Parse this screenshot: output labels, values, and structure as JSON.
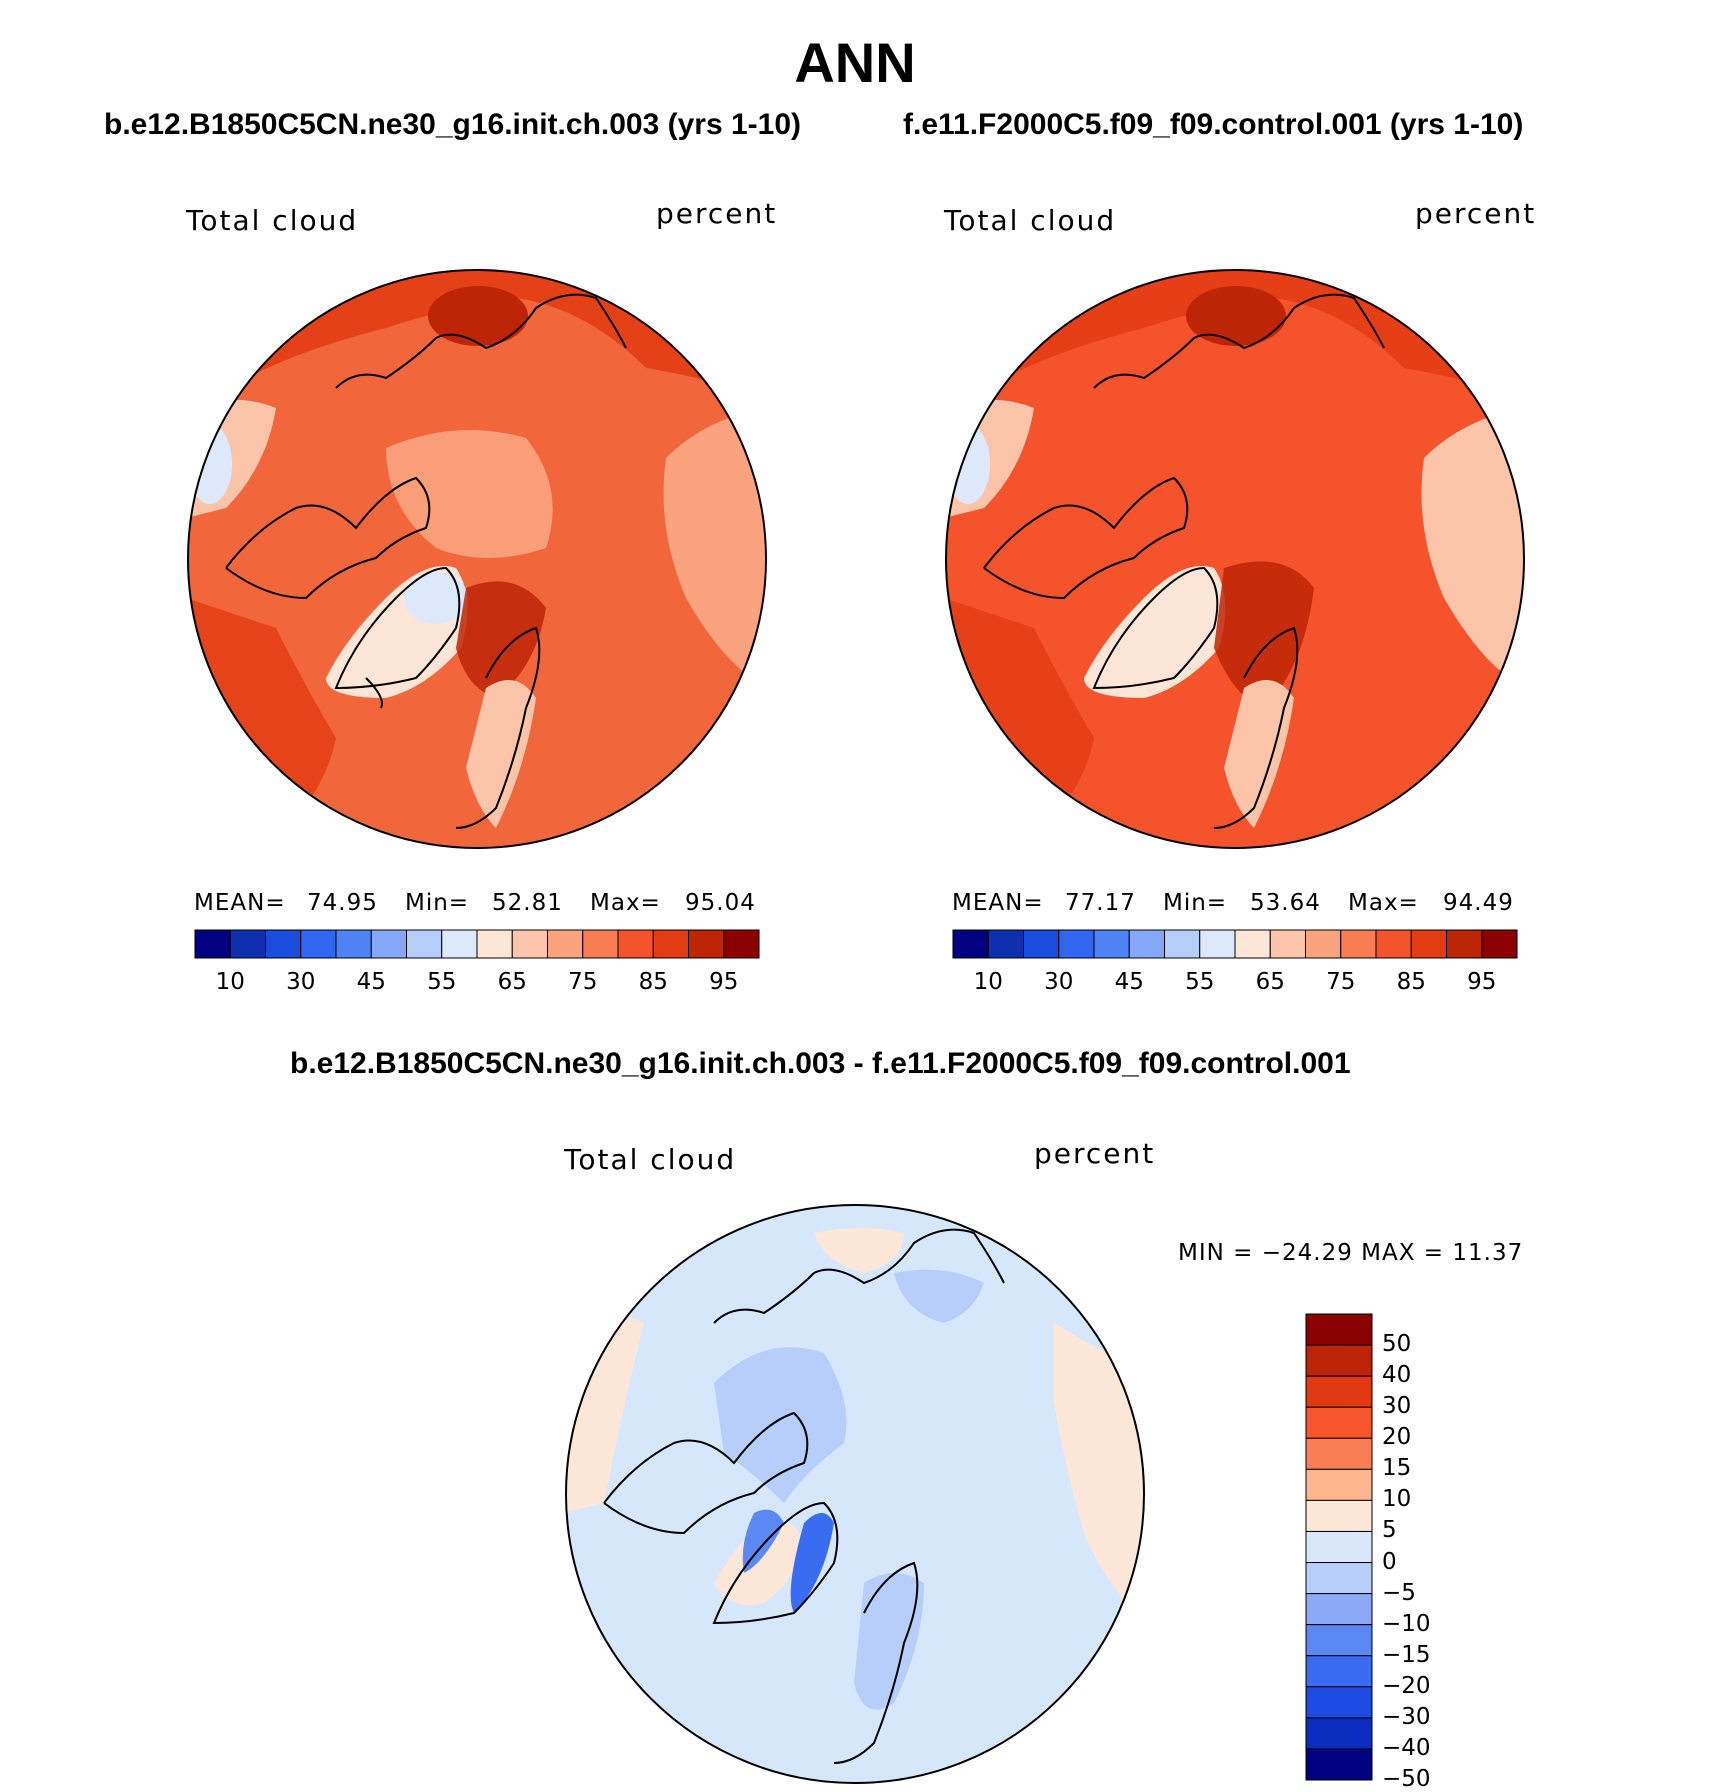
{
  "title": "ANN",
  "panels": {
    "left": {
      "case": "b.e12.B1850C5CN.ne30_g16.init.ch.003 (yrs 1-10)",
      "variable": "Total cloud",
      "units": "percent",
      "mean_label": "MEAN=",
      "mean": "74.95",
      "min_label": "Min=",
      "min": "52.81",
      "max_label": "Max=",
      "max": "95.04"
    },
    "right": {
      "case": "f.e11.F2000C5.f09_f09.control.001 (yrs 1-10)",
      "variable": "Total cloud",
      "units": "percent",
      "mean_label": "MEAN=",
      "mean": "77.17",
      "min_label": "Min=",
      "min": "53.64",
      "max_label": "Max=",
      "max": "94.49"
    },
    "diff": {
      "case": "b.e12.B1850C5CN.ne30_g16.init.ch.003 - f.e11.F2000C5.f09_f09.control.001",
      "variable": "Total cloud",
      "units": "percent",
      "minmax": "MIN = −24.29 MAX =   11.37"
    }
  },
  "colorbar_abs": {
    "colors": [
      "#000080",
      "#0d2fb0",
      "#1a4ddd",
      "#2f66f2",
      "#4f82f5",
      "#84a8f7",
      "#b4cdf9",
      "#dde9fb",
      "#fde6d8",
      "#fcc5aa",
      "#fba37f",
      "#f97c53",
      "#f4532c",
      "#e33b13",
      "#bd2506",
      "#8b0000"
    ],
    "ticks": [
      "10",
      "30",
      "45",
      "55",
      "65",
      "75",
      "85",
      "95"
    ]
  },
  "colorbar_diff": {
    "colors": [
      "#8b0000",
      "#bb2406",
      "#e13a12",
      "#f6552d",
      "#fa7d55",
      "#fbb68f",
      "#fde7d9",
      "#dae7fb",
      "#b6cef9",
      "#8ca9f7",
      "#5c88f4",
      "#3a6cf2",
      "#1b4be3",
      "#0b2dbf",
      "#000080"
    ],
    "ticks": [
      "50",
      "40",
      "30",
      "20",
      "15",
      "10",
      "5",
      "0",
      "−5",
      "−10",
      "−15",
      "−20",
      "−30",
      "−40",
      "−50"
    ]
  },
  "map_colors": {
    "land_line": "#000000",
    "abs_base": "#f2663c",
    "diff_base": "#d6e6fb"
  }
}
